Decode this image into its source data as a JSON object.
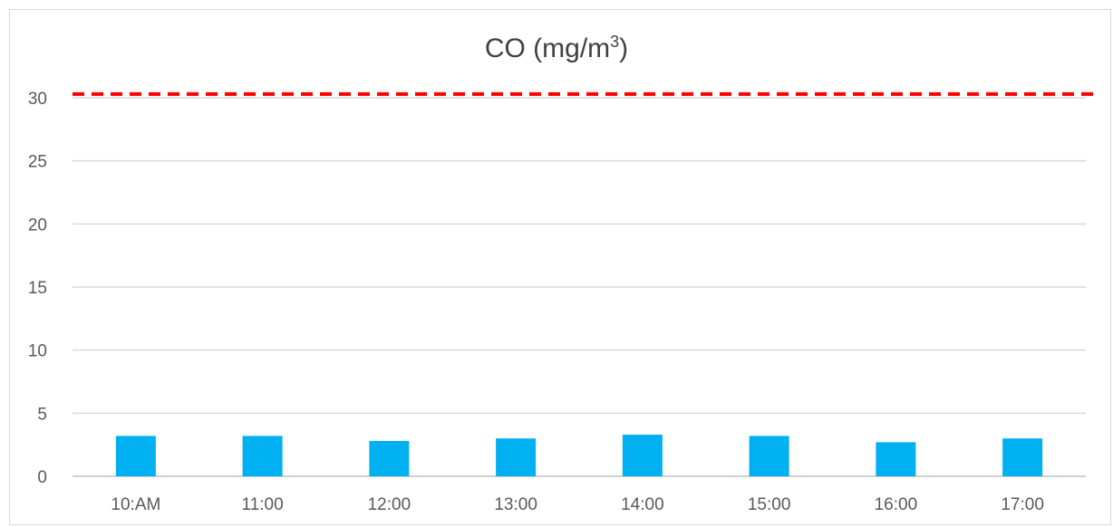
{
  "chart_data": {
    "type": "bar",
    "title": "CO (mg/m",
    "title_sup": "3",
    "title_end": ")",
    "categories": [
      "10:AM",
      "11:00",
      "12:00",
      "13:00",
      "14:00",
      "15:00",
      "16:00",
      "17:00"
    ],
    "values": [
      3.2,
      3.2,
      2.8,
      3.0,
      3.3,
      3.2,
      2.7,
      3.0
    ],
    "ylim": [
      0,
      30
    ],
    "yticks": [
      0,
      5,
      10,
      15,
      20,
      25,
      30
    ],
    "grid": true,
    "bar_color": "#00b0f0",
    "reference_line": {
      "value": 30.3,
      "color": "#ff0000",
      "style": "dashed"
    }
  }
}
